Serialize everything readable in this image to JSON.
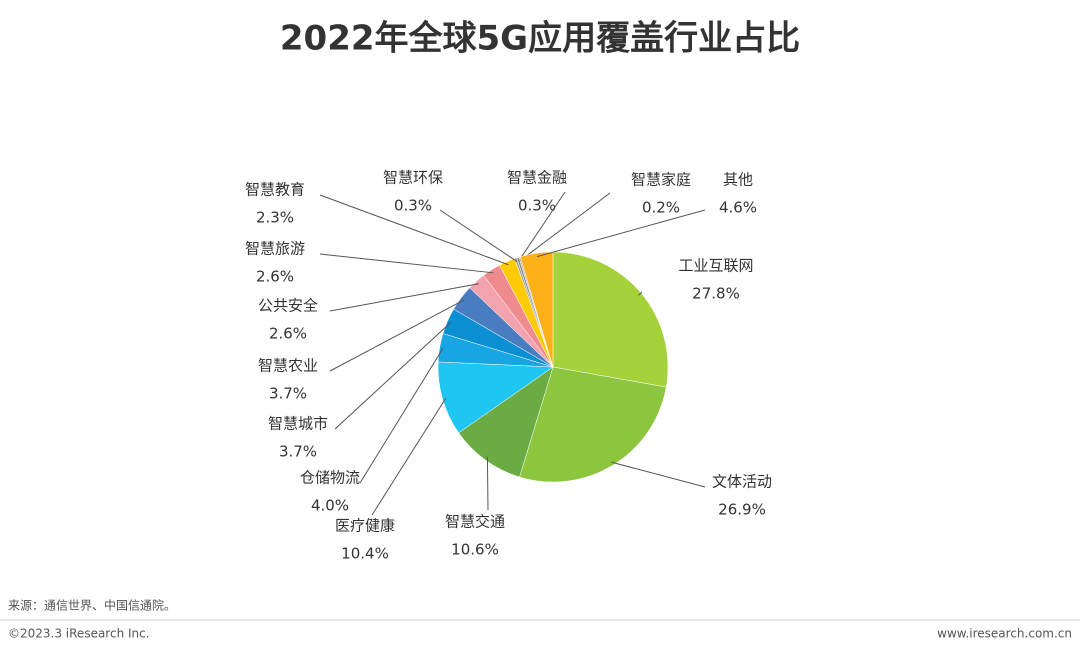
{
  "chart_data": {
    "type": "pie",
    "title": "2022年全球5G应用覆盖行业占比",
    "categories": [
      "工业互联网",
      "文体活动",
      "智慧交通",
      "医疗健康",
      "仓储物流",
      "智慧城市",
      "智慧农业",
      "公共安全",
      "智慧旅游",
      "智慧教育",
      "智慧环保",
      "智慧金融",
      "智慧家庭",
      "其他"
    ],
    "values": [
      27.8,
      26.9,
      10.6,
      10.4,
      4.0,
      3.7,
      3.7,
      2.6,
      2.6,
      2.3,
      0.3,
      0.3,
      0.2,
      4.6
    ],
    "value_labels": [
      "27.8%",
      "26.9%",
      "10.6%",
      "10.4%",
      "4.0%",
      "3.7%",
      "3.7%",
      "2.6%",
      "2.6%",
      "2.3%",
      "0.3%",
      "0.3%",
      "0.2%",
      "4.6%"
    ],
    "colors": [
      "#a5d13a",
      "#8cc63f",
      "#6aac43",
      "#1fc6f2",
      "#17a6e3",
      "#0b8fd3",
      "#4a7dc0",
      "#f3a3ad",
      "#ef8a8e",
      "#ffcb05",
      "#a0a0a0",
      "#8a8a8a",
      "#b5b5b5",
      "#fbb117"
    ]
  },
  "source": "来源：通信世界、中国信通院。",
  "footer_left": "©2023.3 iResearch Inc.",
  "footer_right": "www.iresearch.com.cn"
}
